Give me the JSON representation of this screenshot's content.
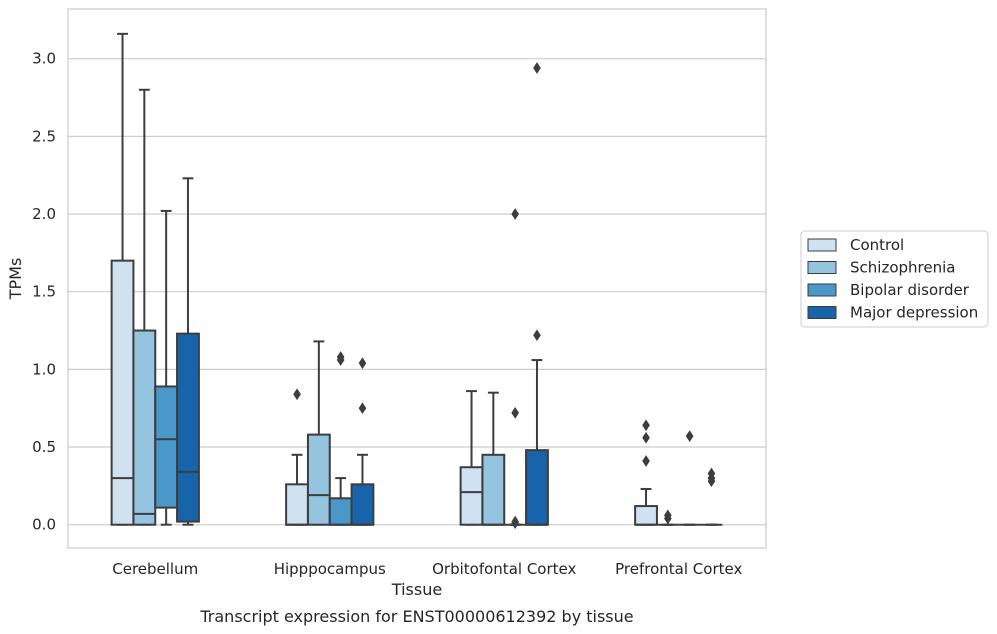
{
  "caption": "Transcript expression for ENST00000612392 by tissue",
  "chart_data": {
    "type": "box",
    "xlabel": "Tissue",
    "ylabel": "TPMs",
    "ylim": [
      -0.15,
      3.32
    ],
    "yticks": [
      "0.0",
      "0.5",
      "1.0",
      "1.5",
      "2.0",
      "2.5",
      "3.0"
    ],
    "grid": "horizontal",
    "legend_position": "right",
    "categories": [
      "Cerebellum",
      "Hipppocampus",
      "Orbitofontal Cortex",
      "Prefrontal Cortex"
    ],
    "series": [
      {
        "name": "Control",
        "color": "#d0e1f2",
        "boxes": [
          {
            "whisker_low": 0.0,
            "q1": 0.0,
            "median": 0.3,
            "q3": 1.7,
            "whisker_high": 3.16,
            "outliers": []
          },
          {
            "whisker_low": 0.0,
            "q1": 0.0,
            "median": 0.0,
            "q3": 0.26,
            "whisker_high": 0.45,
            "outliers": [
              0.84
            ]
          },
          {
            "whisker_low": 0.0,
            "q1": 0.0,
            "median": 0.21,
            "q3": 0.37,
            "whisker_high": 0.86,
            "outliers": []
          },
          {
            "whisker_low": 0.0,
            "q1": 0.0,
            "median": 0.0,
            "q3": 0.12,
            "whisker_high": 0.23,
            "outliers": [
              0.41,
              0.56,
              0.64
            ]
          }
        ]
      },
      {
        "name": "Schizophrenia",
        "color": "#94c4df",
        "boxes": [
          {
            "whisker_low": 0.0,
            "q1": 0.0,
            "median": 0.07,
            "q3": 1.25,
            "whisker_high": 2.8,
            "outliers": []
          },
          {
            "whisker_low": 0.0,
            "q1": 0.0,
            "median": 0.19,
            "q3": 0.58,
            "whisker_high": 1.18,
            "outliers": []
          },
          {
            "whisker_low": 0.0,
            "q1": 0.0,
            "median": 0.0,
            "q3": 0.45,
            "whisker_high": 0.85,
            "outliers": []
          },
          {
            "whisker_low": 0.0,
            "q1": 0.0,
            "median": 0.0,
            "q3": 0.0,
            "whisker_high": 0.0,
            "outliers": [
              0.04,
              0.06
            ]
          }
        ]
      },
      {
        "name": "Bipolar disorder",
        "color": "#4a98c9",
        "boxes": [
          {
            "whisker_low": 0.0,
            "q1": 0.11,
            "median": 0.55,
            "q3": 0.89,
            "whisker_high": 2.02,
            "outliers": []
          },
          {
            "whisker_low": 0.0,
            "q1": 0.0,
            "median": 0.0,
            "q3": 0.17,
            "whisker_high": 0.3,
            "outliers": [
              1.06,
              1.08
            ]
          },
          {
            "whisker_low": 0.0,
            "q1": 0.0,
            "median": 0.0,
            "q3": 0.0,
            "whisker_high": 0.0,
            "outliers": [
              0.01,
              0.02,
              0.72,
              2.0
            ]
          },
          {
            "whisker_low": 0.0,
            "q1": 0.0,
            "median": 0.0,
            "q3": 0.0,
            "whisker_high": 0.0,
            "outliers": [
              0.57
            ]
          }
        ]
      },
      {
        "name": "Major depression",
        "color": "#1764ab",
        "boxes": [
          {
            "whisker_low": 0.0,
            "q1": 0.02,
            "median": 0.34,
            "q3": 1.23,
            "whisker_high": 2.23,
            "outliers": []
          },
          {
            "whisker_low": 0.0,
            "q1": 0.0,
            "median": 0.0,
            "q3": 0.26,
            "whisker_high": 0.45,
            "outliers": [
              0.75,
              1.04
            ]
          },
          {
            "whisker_low": 0.0,
            "q1": 0.0,
            "median": 0.0,
            "q3": 0.48,
            "whisker_high": 1.06,
            "outliers": [
              1.22,
              2.94
            ]
          },
          {
            "whisker_low": 0.0,
            "q1": 0.0,
            "median": 0.0,
            "q3": 0.0,
            "whisker_high": 0.0,
            "outliers": [
              0.28,
              0.3,
              0.33
            ]
          }
        ]
      }
    ]
  }
}
